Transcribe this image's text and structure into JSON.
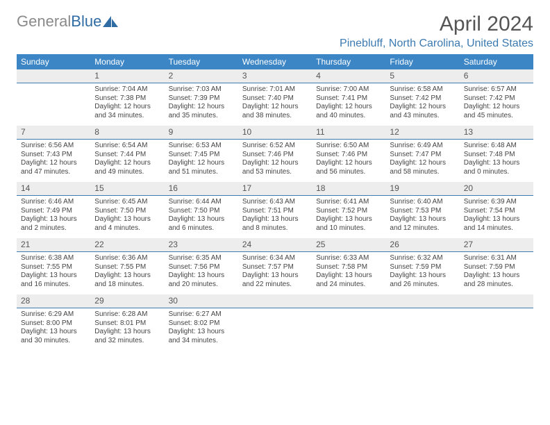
{
  "brand": {
    "part1": "General",
    "part2": "Blue"
  },
  "title": "April 2024",
  "location": "Pinebluff, North Carolina, United States",
  "colors": {
    "header_bg": "#3c86c6",
    "header_text": "#ffffff",
    "daybar_bg": "#ededed",
    "daybar_border": "#3c7ab0",
    "accent": "#3c7ab0",
    "body_text": "#444444",
    "title_text": "#555555"
  },
  "dow": [
    "Sunday",
    "Monday",
    "Tuesday",
    "Wednesday",
    "Thursday",
    "Friday",
    "Saturday"
  ],
  "weeks": [
    [
      {
        "day": "",
        "sunrise": "",
        "sunset": "",
        "daylight": ""
      },
      {
        "day": "1",
        "sunrise": "Sunrise: 7:04 AM",
        "sunset": "Sunset: 7:38 PM",
        "daylight": "Daylight: 12 hours and 34 minutes."
      },
      {
        "day": "2",
        "sunrise": "Sunrise: 7:03 AM",
        "sunset": "Sunset: 7:39 PM",
        "daylight": "Daylight: 12 hours and 35 minutes."
      },
      {
        "day": "3",
        "sunrise": "Sunrise: 7:01 AM",
        "sunset": "Sunset: 7:40 PM",
        "daylight": "Daylight: 12 hours and 38 minutes."
      },
      {
        "day": "4",
        "sunrise": "Sunrise: 7:00 AM",
        "sunset": "Sunset: 7:41 PM",
        "daylight": "Daylight: 12 hours and 40 minutes."
      },
      {
        "day": "5",
        "sunrise": "Sunrise: 6:58 AM",
        "sunset": "Sunset: 7:42 PM",
        "daylight": "Daylight: 12 hours and 43 minutes."
      },
      {
        "day": "6",
        "sunrise": "Sunrise: 6:57 AM",
        "sunset": "Sunset: 7:42 PM",
        "daylight": "Daylight: 12 hours and 45 minutes."
      }
    ],
    [
      {
        "day": "7",
        "sunrise": "Sunrise: 6:56 AM",
        "sunset": "Sunset: 7:43 PM",
        "daylight": "Daylight: 12 hours and 47 minutes."
      },
      {
        "day": "8",
        "sunrise": "Sunrise: 6:54 AM",
        "sunset": "Sunset: 7:44 PM",
        "daylight": "Daylight: 12 hours and 49 minutes."
      },
      {
        "day": "9",
        "sunrise": "Sunrise: 6:53 AM",
        "sunset": "Sunset: 7:45 PM",
        "daylight": "Daylight: 12 hours and 51 minutes."
      },
      {
        "day": "10",
        "sunrise": "Sunrise: 6:52 AM",
        "sunset": "Sunset: 7:46 PM",
        "daylight": "Daylight: 12 hours and 53 minutes."
      },
      {
        "day": "11",
        "sunrise": "Sunrise: 6:50 AM",
        "sunset": "Sunset: 7:46 PM",
        "daylight": "Daylight: 12 hours and 56 minutes."
      },
      {
        "day": "12",
        "sunrise": "Sunrise: 6:49 AM",
        "sunset": "Sunset: 7:47 PM",
        "daylight": "Daylight: 12 hours and 58 minutes."
      },
      {
        "day": "13",
        "sunrise": "Sunrise: 6:48 AM",
        "sunset": "Sunset: 7:48 PM",
        "daylight": "Daylight: 13 hours and 0 minutes."
      }
    ],
    [
      {
        "day": "14",
        "sunrise": "Sunrise: 6:46 AM",
        "sunset": "Sunset: 7:49 PM",
        "daylight": "Daylight: 13 hours and 2 minutes."
      },
      {
        "day": "15",
        "sunrise": "Sunrise: 6:45 AM",
        "sunset": "Sunset: 7:50 PM",
        "daylight": "Daylight: 13 hours and 4 minutes."
      },
      {
        "day": "16",
        "sunrise": "Sunrise: 6:44 AM",
        "sunset": "Sunset: 7:50 PM",
        "daylight": "Daylight: 13 hours and 6 minutes."
      },
      {
        "day": "17",
        "sunrise": "Sunrise: 6:43 AM",
        "sunset": "Sunset: 7:51 PM",
        "daylight": "Daylight: 13 hours and 8 minutes."
      },
      {
        "day": "18",
        "sunrise": "Sunrise: 6:41 AM",
        "sunset": "Sunset: 7:52 PM",
        "daylight": "Daylight: 13 hours and 10 minutes."
      },
      {
        "day": "19",
        "sunrise": "Sunrise: 6:40 AM",
        "sunset": "Sunset: 7:53 PM",
        "daylight": "Daylight: 13 hours and 12 minutes."
      },
      {
        "day": "20",
        "sunrise": "Sunrise: 6:39 AM",
        "sunset": "Sunset: 7:54 PM",
        "daylight": "Daylight: 13 hours and 14 minutes."
      }
    ],
    [
      {
        "day": "21",
        "sunrise": "Sunrise: 6:38 AM",
        "sunset": "Sunset: 7:55 PM",
        "daylight": "Daylight: 13 hours and 16 minutes."
      },
      {
        "day": "22",
        "sunrise": "Sunrise: 6:36 AM",
        "sunset": "Sunset: 7:55 PM",
        "daylight": "Daylight: 13 hours and 18 minutes."
      },
      {
        "day": "23",
        "sunrise": "Sunrise: 6:35 AM",
        "sunset": "Sunset: 7:56 PM",
        "daylight": "Daylight: 13 hours and 20 minutes."
      },
      {
        "day": "24",
        "sunrise": "Sunrise: 6:34 AM",
        "sunset": "Sunset: 7:57 PM",
        "daylight": "Daylight: 13 hours and 22 minutes."
      },
      {
        "day": "25",
        "sunrise": "Sunrise: 6:33 AM",
        "sunset": "Sunset: 7:58 PM",
        "daylight": "Daylight: 13 hours and 24 minutes."
      },
      {
        "day": "26",
        "sunrise": "Sunrise: 6:32 AM",
        "sunset": "Sunset: 7:59 PM",
        "daylight": "Daylight: 13 hours and 26 minutes."
      },
      {
        "day": "27",
        "sunrise": "Sunrise: 6:31 AM",
        "sunset": "Sunset: 7:59 PM",
        "daylight": "Daylight: 13 hours and 28 minutes."
      }
    ],
    [
      {
        "day": "28",
        "sunrise": "Sunrise: 6:29 AM",
        "sunset": "Sunset: 8:00 PM",
        "daylight": "Daylight: 13 hours and 30 minutes."
      },
      {
        "day": "29",
        "sunrise": "Sunrise: 6:28 AM",
        "sunset": "Sunset: 8:01 PM",
        "daylight": "Daylight: 13 hours and 32 minutes."
      },
      {
        "day": "30",
        "sunrise": "Sunrise: 6:27 AM",
        "sunset": "Sunset: 8:02 PM",
        "daylight": "Daylight: 13 hours and 34 minutes."
      },
      {
        "day": "",
        "sunrise": "",
        "sunset": "",
        "daylight": ""
      },
      {
        "day": "",
        "sunrise": "",
        "sunset": "",
        "daylight": ""
      },
      {
        "day": "",
        "sunrise": "",
        "sunset": "",
        "daylight": ""
      },
      {
        "day": "",
        "sunrise": "",
        "sunset": "",
        "daylight": ""
      }
    ]
  ]
}
